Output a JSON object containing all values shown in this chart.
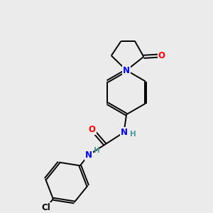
{
  "background_color": "#ebebeb",
  "bond_color": "#000000",
  "atom_colors": {
    "N": "#0000ff",
    "O": "#ff0000",
    "Cl": "#000000",
    "C": "#000000",
    "H": "#4a9999"
  },
  "figsize": [
    3.0,
    3.0
  ],
  "dpi": 100,
  "lw": 1.4,
  "fs": 8.5,
  "xlim": [
    0,
    10
  ],
  "ylim": [
    0,
    10
  ]
}
